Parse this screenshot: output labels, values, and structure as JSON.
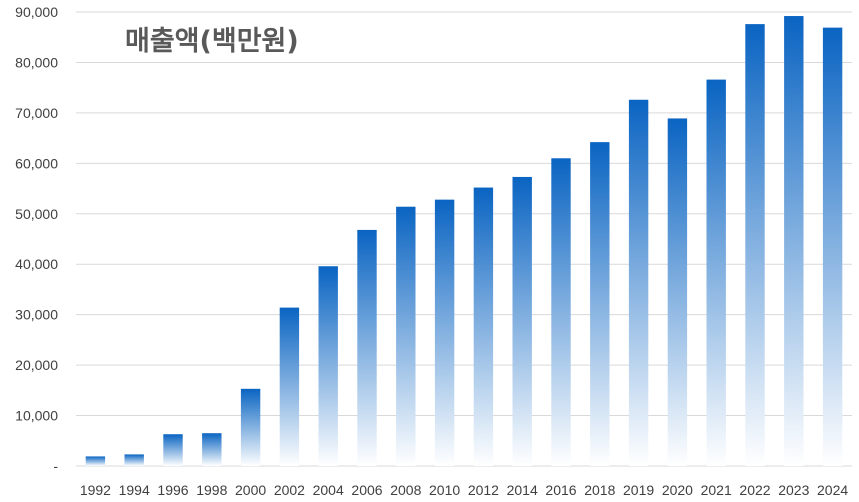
{
  "chart_data": {
    "type": "bar",
    "title": "매출액(백만원)",
    "xlabel": "",
    "ylabel": "",
    "ylim": [
      0,
      90000
    ],
    "y_ticks": [
      0,
      10000,
      20000,
      30000,
      40000,
      50000,
      60000,
      70000,
      80000,
      90000
    ],
    "y_tick_labels": [
      "-",
      "10,000",
      "20,000",
      "30,000",
      "40,000",
      "50,000",
      "60,000",
      "70,000",
      "80,000",
      "90,000"
    ],
    "grid": true,
    "legend": "none",
    "bar_color_top": "#0a64c2",
    "bar_color_bottom": "#ffffff",
    "categories": [
      "1992",
      "1994",
      "1996",
      "1998",
      "2000",
      "2002",
      "2004",
      "2006",
      "2008",
      "2010",
      "2012",
      "2014",
      "2016",
      "2018",
      "2019",
      "2020",
      "2021",
      "2022",
      "2023",
      "2024"
    ],
    "values": [
      1900,
      2300,
      6300,
      6500,
      15300,
      31400,
      39600,
      46800,
      51400,
      52800,
      55200,
      57300,
      61000,
      64200,
      72600,
      68900,
      76600,
      87600,
      89200,
      86900
    ]
  }
}
